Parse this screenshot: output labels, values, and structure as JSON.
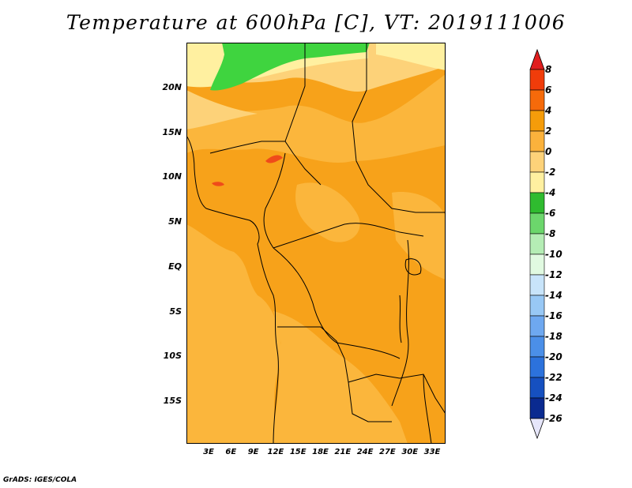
{
  "title": "Temperature at 600hPa [C], VT: 2019111006",
  "footer": "GrADS: IGES/COLA",
  "lat_labels": [
    "20N",
    "15N",
    "10N",
    "5N",
    "EQ",
    "5S",
    "10S",
    "15S"
  ],
  "lon_labels": [
    "3E",
    "6E",
    "9E",
    "12E",
    "15E",
    "18E",
    "21E",
    "24E",
    "27E",
    "30E",
    "33E"
  ],
  "colorbar": {
    "labels": [
      "8",
      "6",
      "4",
      "2",
      "0",
      "-2",
      "-4",
      "-6",
      "-8",
      "-10",
      "-12",
      "-14",
      "-16",
      "-18",
      "-20",
      "-22",
      "-24",
      "-26"
    ],
    "colors": [
      "#e01e1e",
      "#f03c0a",
      "#f56a0a",
      "#f59c0a",
      "#fbb23c",
      "#fdd279",
      "#fff0a0",
      "#2fbb2f",
      "#6cd66c",
      "#b5edb5",
      "#e1fae1",
      "#c8e4fa",
      "#98c8f5",
      "#6ea8f0",
      "#4b8fe8",
      "#2c72dc",
      "#1650c0",
      "#0a2a90",
      "#101060"
    ]
  },
  "map_colors": {
    "warm_base": "#f7a21a",
    "warm_light": "#fbb63c",
    "mid": "#fdd279",
    "pale": "#fff0a0",
    "green": "#3fd43f",
    "red": "#ef4b1a"
  }
}
